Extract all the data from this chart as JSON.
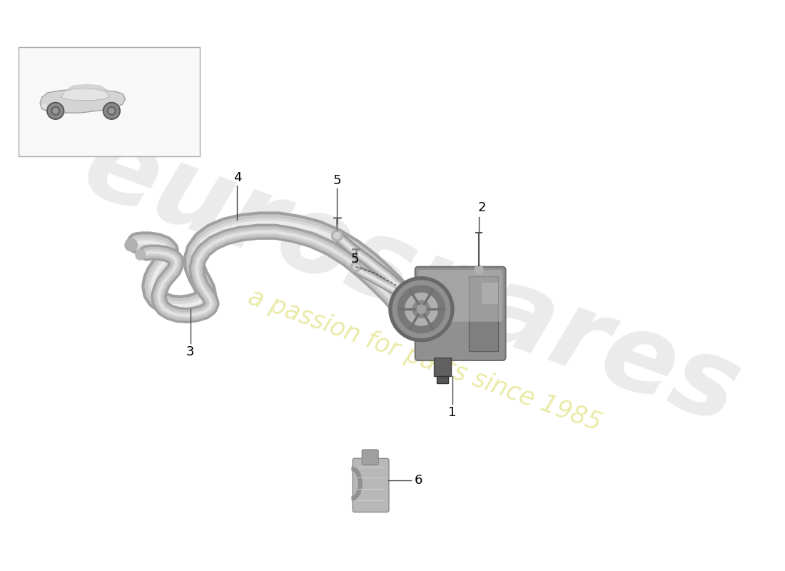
{
  "background_color": "#ffffff",
  "watermark_text1": "eurospares",
  "watermark_text2": "a passion for parts since 1985",
  "watermark_color1": "#d8d8d8",
  "watermark_color2": "#e8e8a0",
  "pipe_dark": "#aaaaaa",
  "pipe_mid": "#cccccc",
  "pipe_light": "#e5e5e5",
  "pipe_highlight": "#f0f0f0"
}
